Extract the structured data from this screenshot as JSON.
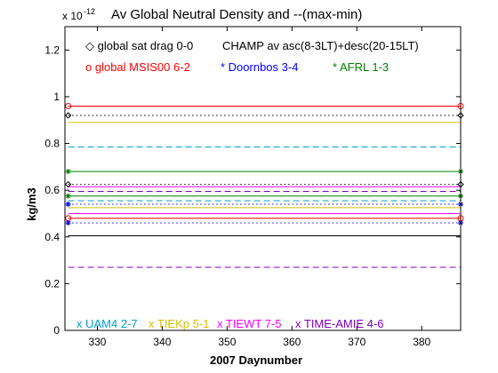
{
  "chart_data": {
    "type": "line",
    "title": "Av Global Neutral Density and --(max-min)",
    "xlabel": "2007 Daynumber",
    "ylabel": "kg/m3",
    "y_exponent_label": "x 10",
    "y_exponent": "-12",
    "xlim": [
      325,
      386
    ],
    "ylim": [
      0,
      1.3
    ],
    "x_ticks": [
      330,
      340,
      350,
      360,
      370,
      380
    ],
    "y_ticks": [
      0,
      0.2,
      0.4,
      0.6,
      0.8,
      1,
      1.2
    ],
    "y_tick_labels": [
      "0",
      "0.2",
      "0.4",
      "0.6",
      "0.8",
      "1",
      "1.2"
    ],
    "grid": false,
    "x_start": 325.5,
    "x_end": 386,
    "series": [
      {
        "name": "global sat drag 0-0",
        "color": "#000000",
        "style": "dotted",
        "marker": "diamond",
        "avg": 0.625,
        "range": 0.92
      },
      {
        "name": "CHAMP av asc(8-3LT)+desc(20-15LT)",
        "color": "#000000",
        "style": "solid",
        "marker": "none",
        "avg": 0.405,
        "range": null
      },
      {
        "name": "global MSIS00 6-2",
        "color": "#ff0000",
        "style": "solid",
        "marker": "circle",
        "avg": 0.96,
        "range": 0.48
      },
      {
        "name": "Doornbos 3-4",
        "color": "#0000ff",
        "style": "dotted",
        "marker": "star",
        "avg": 0.54,
        "range": 0.46
      },
      {
        "name": "AFRL 1-3",
        "color": "#008000",
        "style": "solid",
        "marker": "star",
        "avg": 0.68,
        "range": 0.575
      },
      {
        "name": "UAM4 2-7",
        "color": "#00a0d0",
        "style": "dashed",
        "marker": "none",
        "avg": 0.785,
        "range": 0.555
      },
      {
        "name": "TIEKp 5-1",
        "color": "#d4c000",
        "style": "solid",
        "marker": "none",
        "avg": 0.89,
        "range": 0.525
      },
      {
        "name": "TIEWT 7-5",
        "color": "#ff00ff",
        "style": "solid",
        "marker": "none",
        "avg": 0.615,
        "range": 0.5
      },
      {
        "name": "TIME-AMIE 4-6",
        "color": "#8000c0",
        "style": "dashed",
        "marker": "none",
        "avg": 0.595,
        "range": 0.27
      }
    ],
    "legend_rows": [
      [
        {
          "text": "◇ global sat drag 0-0",
          "color": "#000000"
        },
        {
          "text": "CHAMP av asc(8-3LT)+desc(20-15LT)",
          "color": "#000000"
        }
      ],
      [
        {
          "text": "o global MSIS00 6-2",
          "color": "#ff0000"
        },
        {
          "text": "* Doornbos 3-4",
          "color": "#0000ff"
        },
        {
          "text": "* AFRL 1-3",
          "color": "#008000"
        }
      ],
      [
        {
          "text": "x UAM4 2-7",
          "color": "#00a0d0"
        },
        {
          "text": "x TIEKp 5-1",
          "color": "#d4c000"
        },
        {
          "text": "x TIEWT 7-5",
          "color": "#ff00ff"
        },
        {
          "text": "x TIME-AMIE 4-6",
          "color": "#8000c0"
        }
      ]
    ]
  }
}
